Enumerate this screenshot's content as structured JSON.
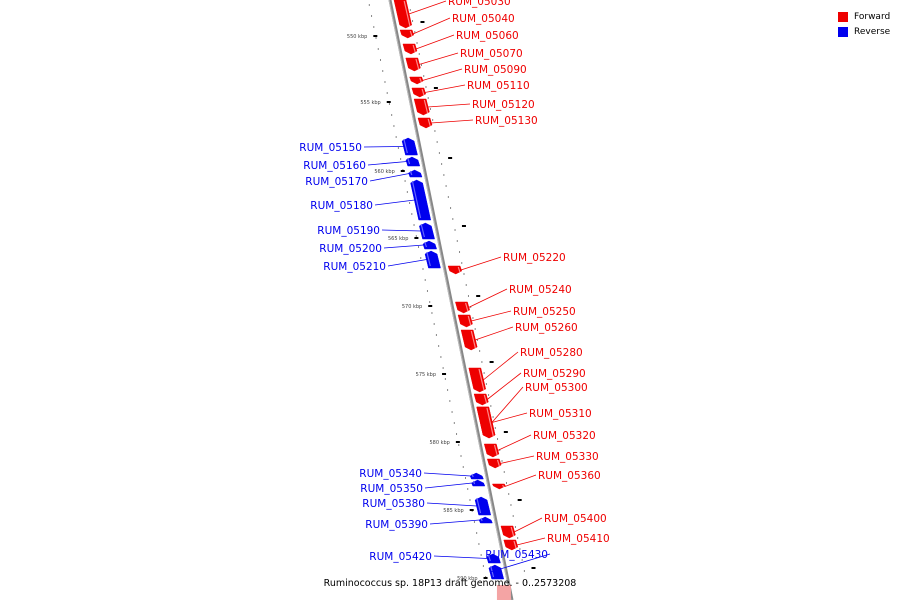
{
  "caption": "Ruminococcus sp. 18P13 draft genome. - 0..2573208",
  "legend": [
    {
      "label": "Forward",
      "color": "#ee0000"
    },
    {
      "label": "Reverse",
      "color": "#0000ee"
    }
  ],
  "colors": {
    "forward": "#ee0000",
    "reverse": "#0000ee",
    "axis": "#888888"
  },
  "scale_labels": [
    "550 kbp",
    "555 kbp",
    "560 kbp",
    "565 kbp",
    "570 kbp",
    "575 kbp",
    "580 kbp",
    "585 kbp",
    "590 kbp"
  ],
  "genes": [
    {
      "name": "RUM_05030",
      "strand": "forward"
    },
    {
      "name": "RUM_05040",
      "strand": "forward"
    },
    {
      "name": "RUM_05060",
      "strand": "forward"
    },
    {
      "name": "RUM_05070",
      "strand": "forward"
    },
    {
      "name": "RUM_05090",
      "strand": "forward"
    },
    {
      "name": "RUM_05110",
      "strand": "forward"
    },
    {
      "name": "RUM_05120",
      "strand": "forward"
    },
    {
      "name": "RUM_05130",
      "strand": "forward"
    },
    {
      "name": "RUM_05150",
      "strand": "reverse"
    },
    {
      "name": "RUM_05160",
      "strand": "reverse"
    },
    {
      "name": "RUM_05170",
      "strand": "reverse"
    },
    {
      "name": "RUM_05180",
      "strand": "reverse"
    },
    {
      "name": "RUM_05190",
      "strand": "reverse"
    },
    {
      "name": "RUM_05200",
      "strand": "reverse"
    },
    {
      "name": "RUM_05210",
      "strand": "reverse"
    },
    {
      "name": "RUM_05220",
      "strand": "forward"
    },
    {
      "name": "RUM_05240",
      "strand": "forward"
    },
    {
      "name": "RUM_05250",
      "strand": "forward"
    },
    {
      "name": "RUM_05260",
      "strand": "forward"
    },
    {
      "name": "RUM_05280",
      "strand": "forward"
    },
    {
      "name": "RUM_05290",
      "strand": "forward"
    },
    {
      "name": "RUM_05300",
      "strand": "forward"
    },
    {
      "name": "RUM_05310",
      "strand": "forward"
    },
    {
      "name": "RUM_05320",
      "strand": "forward"
    },
    {
      "name": "RUM_05330",
      "strand": "forward"
    },
    {
      "name": "RUM_05340",
      "strand": "reverse"
    },
    {
      "name": "RUM_05350",
      "strand": "reverse"
    },
    {
      "name": "RUM_05360",
      "strand": "forward"
    },
    {
      "name": "RUM_05380",
      "strand": "reverse"
    },
    {
      "name": "RUM_05390",
      "strand": "reverse"
    },
    {
      "name": "RUM_05400",
      "strand": "forward"
    },
    {
      "name": "RUM_05410",
      "strand": "forward"
    },
    {
      "name": "RUM_05420",
      "strand": "reverse"
    },
    {
      "name": "RUM_05430",
      "strand": "reverse"
    }
  ]
}
